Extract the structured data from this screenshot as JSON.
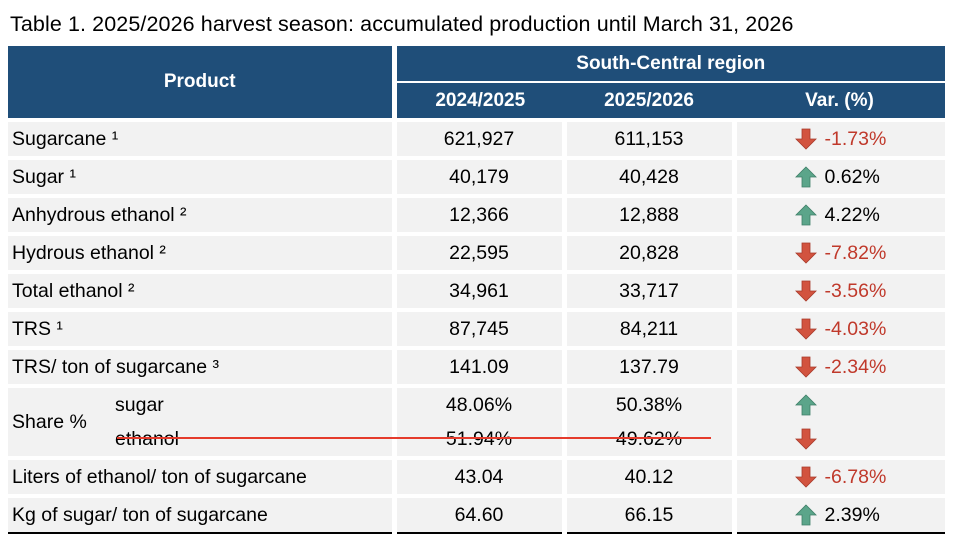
{
  "title": "Table 1. 2025/2026 harvest season: accumulated production until March 31, 2026",
  "header": {
    "product": "Product",
    "region": "South-Central region",
    "col1": "2024/2025",
    "col2": "2025/2026",
    "col3": "Var. (%)"
  },
  "colors": {
    "header_bg": "#1f4e79",
    "up_arrow": "#5ba58a",
    "down_arrow": "#d2533f",
    "neg_text": "#c0392b",
    "underline": "#e53b2c"
  },
  "rows": [
    {
      "label": "Sugarcane ¹",
      "v1": "621,927",
      "v2": "611,153",
      "dir": "down",
      "var": "-1.73%"
    },
    {
      "label": "Sugar ¹",
      "v1": "40,179",
      "v2": "40,428",
      "dir": "up",
      "var": "0.62%"
    },
    {
      "label": "Anhydrous ethanol ²",
      "v1": "12,366",
      "v2": "12,888",
      "dir": "up",
      "var": "4.22%"
    },
    {
      "label": "Hydrous ethanol ²",
      "v1": "22,595",
      "v2": "20,828",
      "dir": "down",
      "var": "-7.82%"
    },
    {
      "label": "Total ethanol ²",
      "v1": "34,961",
      "v2": "33,717",
      "dir": "down",
      "var": "-3.56%"
    },
    {
      "label": "TRS ¹",
      "v1": "87,745",
      "v2": "84,211",
      "dir": "down",
      "var": "-4.03%"
    },
    {
      "label": "TRS/ ton of sugarcane ³",
      "v1": "141.09",
      "v2": "137.79",
      "dir": "down",
      "var": "-2.34%"
    }
  ],
  "share": {
    "label": "Share %",
    "sugar": {
      "label": "sugar",
      "v1": "48.06%",
      "v2": "50.38%",
      "dir": "up"
    },
    "ethanol": {
      "label": "ethanol",
      "v1": "51.94%",
      "v2": "49.62%",
      "dir": "down"
    }
  },
  "tail_rows": [
    {
      "label": "Liters of ethanol/ ton of sugarcane",
      "v1": "43.04",
      "v2": "40.12",
      "dir": "down",
      "var": "-6.78%"
    },
    {
      "label": "Kg of sugar/ ton of sugarcane",
      "v1": "64.60",
      "v2": "66.15",
      "dir": "up",
      "var": "2.39%"
    }
  ]
}
